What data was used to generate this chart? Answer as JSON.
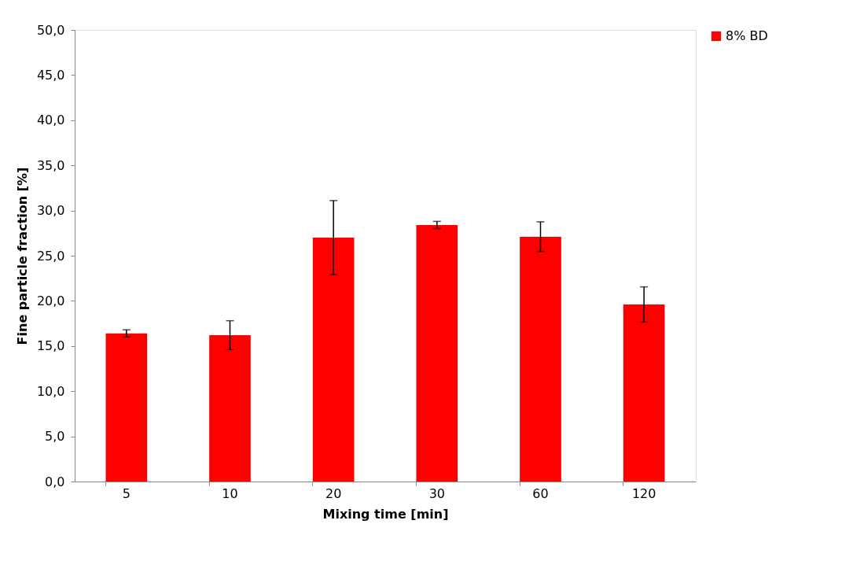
{
  "chart_data": {
    "type": "bar",
    "xlabel": "Mixing time [min]",
    "ylabel": "Fine particle fraction [%]",
    "categories": [
      "5",
      "10",
      "20",
      "30",
      "60",
      "120"
    ],
    "series": [
      {
        "name": "8% BD",
        "color": "#ff0000",
        "values": [
          16.4,
          16.2,
          27.0,
          28.4,
          27.1,
          19.6
        ],
        "errors": [
          0.4,
          1.6,
          4.1,
          0.4,
          1.65,
          1.95
        ]
      }
    ],
    "ylim": [
      0,
      50
    ],
    "yticks": [
      {
        "value": 0,
        "label": "0,0"
      },
      {
        "value": 5,
        "label": "5,0"
      },
      {
        "value": 10,
        "label": "10,0"
      },
      {
        "value": 15,
        "label": "15,0"
      },
      {
        "value": 20,
        "label": "20,0"
      },
      {
        "value": 25,
        "label": "25,0"
      },
      {
        "value": 30,
        "label": "30,0"
      },
      {
        "value": 35,
        "label": "35,0"
      },
      {
        "value": 40,
        "label": "40,0"
      },
      {
        "value": 45,
        "label": "45,0"
      },
      {
        "value": 50,
        "label": "50,0"
      }
    ],
    "grid": false,
    "legend": "right"
  }
}
